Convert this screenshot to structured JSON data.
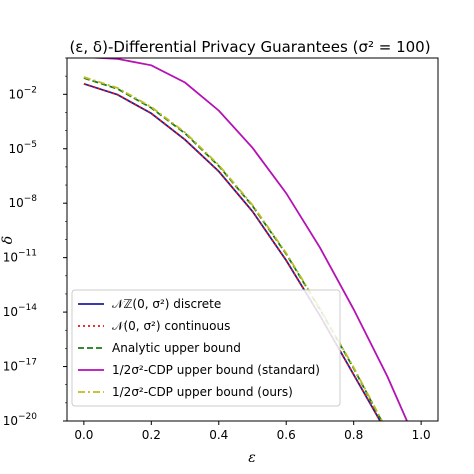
{
  "chart_data": {
    "type": "line",
    "title": "(ε, δ)-Differential Privacy Guarantees (σ² = 100)",
    "xlabel": "ε",
    "ylabel": "δ",
    "xlim": [
      -0.05,
      1.05
    ],
    "ylog_lim": [
      -20,
      0
    ],
    "yscale": "log",
    "x_ticks": [
      {
        "value": 0.0,
        "label": "0.0"
      },
      {
        "value": 0.2,
        "label": "0.2"
      },
      {
        "value": 0.4,
        "label": "0.4"
      },
      {
        "value": 0.6,
        "label": "0.6"
      },
      {
        "value": 0.8,
        "label": "0.8"
      },
      {
        "value": 1.0,
        "label": "1.0"
      }
    ],
    "y_ticks": [
      {
        "exp": -2,
        "label": "10",
        "sup": "−2"
      },
      {
        "exp": -5,
        "label": "10",
        "sup": "−5"
      },
      {
        "exp": -8,
        "label": "10",
        "sup": "−8"
      },
      {
        "exp": -11,
        "label": "10",
        "sup": "−11"
      },
      {
        "exp": -14,
        "label": "10",
        "sup": "−14"
      },
      {
        "exp": -17,
        "label": "10",
        "sup": "−17"
      },
      {
        "exp": -20,
        "label": "10",
        "sup": "−20"
      }
    ],
    "legend_position": "lower-left",
    "series": [
      {
        "name": "𝒩ℤ(0, σ²) discrete",
        "color": "#1f1f9e",
        "dash": "solid",
        "x": [
          0.0,
          0.1,
          0.2,
          0.3,
          0.4,
          0.5,
          0.6,
          0.7,
          0.8,
          0.9
        ],
        "log10_y": [
          -1.42,
          -2.02,
          -3.05,
          -4.5,
          -6.25,
          -8.45,
          -11.15,
          -14.2,
          -17.45,
          -20.7
        ]
      },
      {
        "name": "𝒩(0, σ²) continuous",
        "color": "#e8140f",
        "dash": "dotted",
        "x": [
          0.0,
          0.1,
          0.2,
          0.3,
          0.4,
          0.5,
          0.6,
          0.7,
          0.8,
          0.9
        ],
        "log10_y": [
          -1.42,
          -2.02,
          -3.05,
          -4.5,
          -6.25,
          -8.45,
          -11.15,
          -14.2,
          -17.45,
          -20.7
        ]
      },
      {
        "name": "Analytic upper bound",
        "color": "#1a7a1a",
        "dash": "dashed",
        "x": [
          0.0,
          0.1,
          0.2,
          0.3,
          0.4,
          0.5,
          0.6,
          0.7,
          0.8,
          0.9
        ],
        "log10_y": [
          -1.1,
          -1.7,
          -2.75,
          -4.15,
          -5.95,
          -8.15,
          -10.8,
          -13.85,
          -17.1,
          -20.6
        ]
      },
      {
        "name": "1/2σ²-CDP upper bound (standard)",
        "color": "#b511b5",
        "dash": "solid",
        "x": [
          0.0,
          0.1,
          0.2,
          0.3,
          0.4,
          0.5,
          0.6,
          0.7,
          0.8,
          0.9,
          0.97
        ],
        "log10_y": [
          0.05,
          -0.05,
          -0.4,
          -1.35,
          -2.9,
          -4.95,
          -7.45,
          -10.45,
          -13.85,
          -17.55,
          -20.5
        ]
      },
      {
        "name": "1/2σ²-CDP upper bound (ours)",
        "color": "#bcbd22",
        "dash": "dashdot",
        "x": [
          0.0,
          0.1,
          0.2,
          0.3,
          0.4,
          0.5,
          0.6,
          0.7,
          0.8,
          0.9
        ],
        "log10_y": [
          -1.05,
          -1.65,
          -2.7,
          -4.1,
          -5.9,
          -8.1,
          -10.75,
          -13.8,
          -17.05,
          -20.55
        ]
      }
    ],
    "legend": [
      {
        "label": "𝒩ℤ(0, σ²) discrete",
        "color": "#1f1f9e",
        "dash": "solid"
      },
      {
        "label": "𝒩(0, σ²) continuous",
        "color": "#e8140f",
        "dash": "dotted"
      },
      {
        "label": "Analytic upper bound",
        "color": "#1a7a1a",
        "dash": "dashed"
      },
      {
        "label": "1/2σ²-CDP upper bound (standard)",
        "color": "#b511b5",
        "dash": "solid"
      },
      {
        "label": "1/2σ²-CDP upper bound (ours)",
        "color": "#bcbd22",
        "dash": "dashdot"
      }
    ]
  }
}
